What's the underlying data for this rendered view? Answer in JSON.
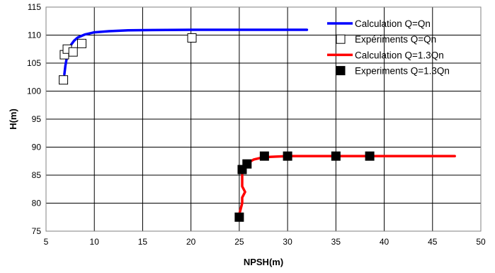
{
  "chart_data": {
    "type": "line",
    "xlabel": "NPSH(m)",
    "ylabel": "H(m)",
    "xlim": [
      5,
      50
    ],
    "ylim": [
      75,
      115
    ],
    "xticks": [
      5,
      10,
      15,
      20,
      25,
      30,
      35,
      40,
      45,
      50
    ],
    "yticks": [
      75,
      80,
      85,
      90,
      95,
      100,
      105,
      110,
      115
    ],
    "grid": true,
    "legend_position": "top-right",
    "series": [
      {
        "name": "Calculation Q=Qn",
        "kind": "line",
        "color": "#0000FF",
        "x": [
          6.9,
          7.0,
          7.1,
          7.2,
          7.4,
          7.6,
          7.9,
          8.3,
          9.0,
          10.0,
          11.5,
          13.5,
          16.0,
          20.0,
          25.0,
          32.0
        ],
        "y": [
          103.0,
          104.5,
          105.5,
          106.5,
          107.5,
          108.3,
          109.0,
          109.6,
          110.1,
          110.5,
          110.7,
          110.85,
          110.9,
          110.95,
          110.95,
          110.95
        ]
      },
      {
        "name": "Expériments Q=Qn",
        "kind": "marker",
        "marker": "open-square",
        "color": "#000000",
        "x": [
          6.8,
          6.9,
          7.2,
          7.8,
          8.7,
          20.1
        ],
        "y": [
          102.0,
          106.5,
          107.5,
          107.0,
          108.5,
          109.5
        ]
      },
      {
        "name": "Calculation Q=1.3Qn",
        "kind": "line",
        "color": "#FF0000",
        "x": [
          25.0,
          25.3,
          25.3,
          25.6,
          25.3,
          25.3,
          25.5,
          25.9,
          26.5,
          27.5,
          30.0,
          35.0,
          40.0,
          45.0,
          47.3
        ],
        "y": [
          78.0,
          80.0,
          81.0,
          82.0,
          83.0,
          86.0,
          86.5,
          87.2,
          87.8,
          88.2,
          88.4,
          88.4,
          88.4,
          88.4,
          88.4
        ]
      },
      {
        "name": "Experiments Q=1.3Qn",
        "kind": "marker",
        "marker": "filled-square",
        "color": "#000000",
        "x": [
          25.0,
          25.3,
          25.8,
          27.6,
          30.0,
          35.0,
          38.5
        ],
        "y": [
          77.5,
          86.0,
          87.0,
          88.4,
          88.4,
          88.4,
          88.4
        ]
      }
    ]
  }
}
